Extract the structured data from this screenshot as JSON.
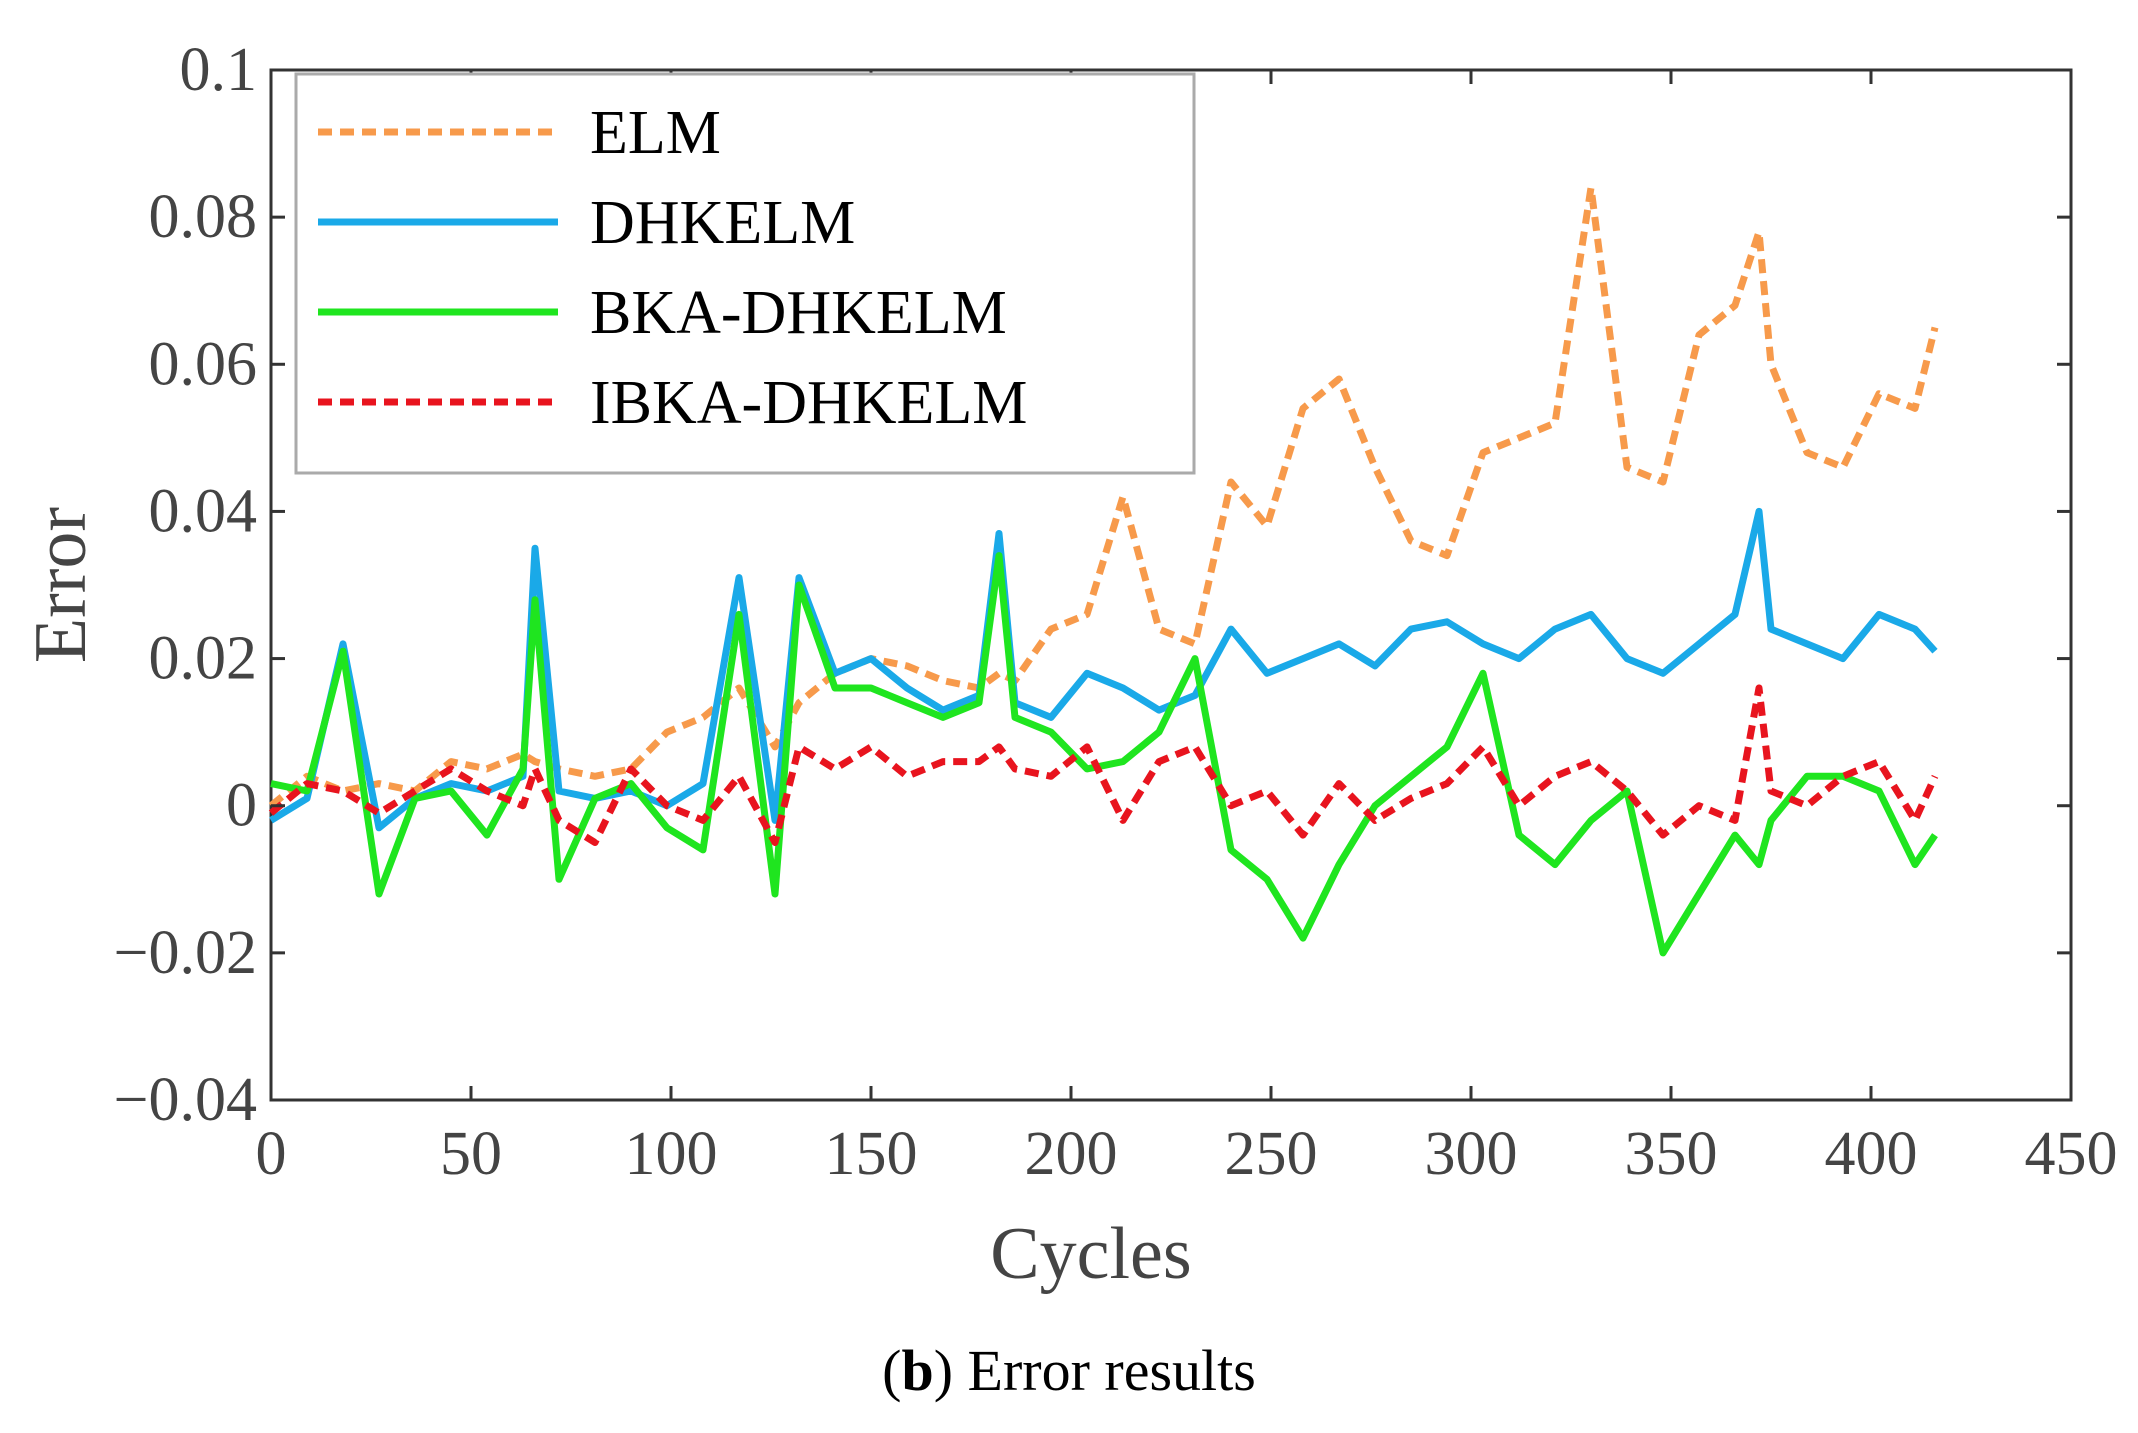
{
  "chart_data": {
    "type": "line",
    "title": "",
    "xlabel": "Cycles",
    "ylabel": "Error",
    "xlim": [
      0,
      450
    ],
    "ylim": [
      -0.04,
      0.1
    ],
    "xticks": [
      0,
      50,
      100,
      150,
      200,
      250,
      300,
      350,
      400,
      450
    ],
    "xtick_labels": [
      "0",
      "50",
      "100",
      "150",
      "200",
      "250",
      "300",
      "350",
      "400",
      "450"
    ],
    "yticks": [
      -0.04,
      -0.02,
      0,
      0.02,
      0.04,
      0.06,
      0.08,
      0.1
    ],
    "ytick_labels": [
      "−0.04",
      "−0.02",
      "0",
      "0.02",
      "0.04",
      "0.06",
      "0.08",
      "0.1"
    ],
    "grid": false,
    "legend_position": "top-left",
    "x": [
      0,
      9,
      18,
      27,
      36,
      45,
      54,
      63,
      66,
      72,
      81,
      90,
      99,
      108,
      117,
      126,
      132,
      141,
      150,
      159,
      168,
      177,
      182,
      186,
      195,
      204,
      213,
      222,
      231,
      240,
      249,
      258,
      267,
      276,
      285,
      294,
      303,
      312,
      321,
      330,
      339,
      348,
      357,
      366,
      372,
      375,
      384,
      393,
      402,
      411,
      416
    ],
    "series": [
      {
        "name": "ELM",
        "color": "#f79a4b",
        "dash": "dashed",
        "values": [
          0.0,
          0.004,
          0.002,
          0.003,
          0.002,
          0.006,
          0.005,
          0.007,
          0.006,
          0.005,
          0.004,
          0.005,
          0.01,
          0.012,
          0.016,
          0.008,
          0.014,
          0.018,
          0.02,
          0.019,
          0.017,
          0.016,
          0.018,
          0.017,
          0.024,
          0.026,
          0.042,
          0.024,
          0.022,
          0.044,
          0.038,
          0.054,
          0.058,
          0.046,
          0.036,
          0.034,
          0.048,
          0.05,
          0.052,
          0.084,
          0.046,
          0.044,
          0.064,
          0.068,
          0.078,
          0.06,
          0.048,
          0.046,
          0.056,
          0.054,
          0.065
        ]
      },
      {
        "name": "DHKELM",
        "color": "#1aa9e8",
        "dash": "solid",
        "values": [
          -0.002,
          0.001,
          0.022,
          -0.003,
          0.001,
          0.003,
          0.002,
          0.004,
          0.035,
          0.002,
          0.001,
          0.002,
          0.0,
          0.003,
          0.031,
          -0.002,
          0.031,
          0.018,
          0.02,
          0.016,
          0.013,
          0.015,
          0.037,
          0.014,
          0.012,
          0.018,
          0.016,
          0.013,
          0.015,
          0.024,
          0.018,
          0.02,
          0.022,
          0.019,
          0.024,
          0.025,
          0.022,
          0.02,
          0.024,
          0.026,
          0.02,
          0.018,
          0.022,
          0.026,
          0.04,
          0.024,
          0.022,
          0.02,
          0.026,
          0.024,
          0.021
        ]
      },
      {
        "name": "BKA-DHKELM",
        "color": "#1fe51f",
        "dash": "solid",
        "values": [
          0.003,
          0.002,
          0.021,
          -0.012,
          0.001,
          0.002,
          -0.004,
          0.005,
          0.028,
          -0.01,
          0.001,
          0.003,
          -0.003,
          -0.006,
          0.026,
          -0.012,
          0.03,
          0.016,
          0.016,
          0.014,
          0.012,
          0.014,
          0.034,
          0.012,
          0.01,
          0.005,
          0.006,
          0.01,
          0.02,
          -0.006,
          -0.01,
          -0.018,
          -0.008,
          0.0,
          0.004,
          0.008,
          0.018,
          -0.004,
          -0.008,
          -0.002,
          0.002,
          -0.02,
          -0.012,
          -0.004,
          -0.008,
          -0.002,
          0.004,
          0.004,
          0.002,
          -0.008,
          -0.004
        ]
      },
      {
        "name": "IBKA-DHKELM",
        "color": "#e8141e",
        "dash": "dashed",
        "values": [
          -0.001,
          0.003,
          0.002,
          -0.001,
          0.002,
          0.005,
          0.002,
          0.0,
          0.005,
          -0.002,
          -0.005,
          0.005,
          0.0,
          -0.002,
          0.004,
          -0.005,
          0.008,
          0.005,
          0.008,
          0.004,
          0.006,
          0.006,
          0.008,
          0.005,
          0.004,
          0.008,
          -0.002,
          0.006,
          0.008,
          0.0,
          0.002,
          -0.004,
          0.003,
          -0.002,
          0.001,
          0.003,
          0.008,
          0.0,
          0.004,
          0.006,
          0.002,
          -0.004,
          0.0,
          -0.002,
          0.016,
          0.002,
          0.0,
          0.004,
          0.006,
          -0.002,
          0.004
        ]
      }
    ]
  },
  "caption": {
    "panel": "b",
    "text": " Error results"
  }
}
